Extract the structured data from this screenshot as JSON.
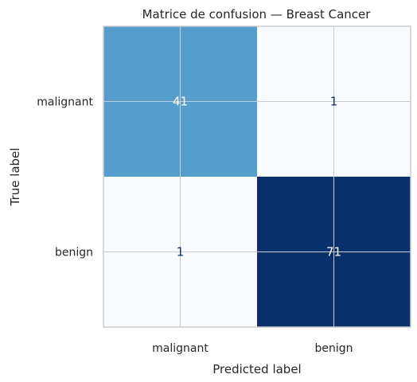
{
  "chart_data": {
    "type": "heatmap",
    "title": "Matrice de confusion — Breast Cancer",
    "xlabel": "Predicted label",
    "ylabel": "True label",
    "x_categories": [
      "malignant",
      "benign"
    ],
    "y_categories": [
      "malignant",
      "benign"
    ],
    "values": [
      [
        41,
        1
      ],
      [
        1,
        71
      ]
    ],
    "colormap": "Blues",
    "color_range": [
      1,
      71
    ],
    "grid": true,
    "colors": {
      "low": "#f7fbff",
      "high": "#08306b",
      "text_dark": "#08306b",
      "text_light": "#ffffff",
      "grid": "#cccccc",
      "frame": "#cccccc"
    }
  }
}
